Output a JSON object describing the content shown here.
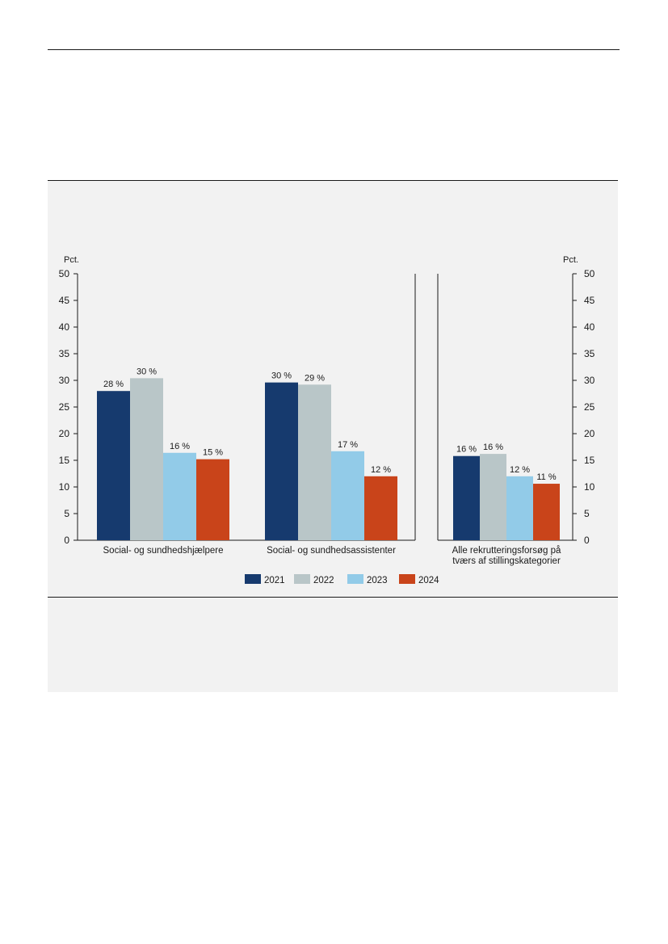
{
  "chart_data": {
    "type": "bar",
    "left_unit_label": "Pct.",
    "right_unit_label": "Pct.",
    "ylim": [
      0,
      50
    ],
    "yticks": [
      0,
      5,
      10,
      15,
      20,
      25,
      30,
      35,
      40,
      45,
      50
    ],
    "grid": false,
    "legend_position": "bottom",
    "series": [
      {
        "name": "2021",
        "color": "#163a6e"
      },
      {
        "name": "2022",
        "color": "#b9c6c8"
      },
      {
        "name": "2023",
        "color": "#92cbe8"
      },
      {
        "name": "2024",
        "color": "#c9441a"
      }
    ],
    "groups": [
      {
        "category": "Social- og sundhedshjælpere",
        "category_lines": [
          "Social- og sundhedshjælpere"
        ],
        "values": [
          28,
          30.4,
          16.4,
          15.2
        ],
        "labels": [
          "28 %",
          "30 %",
          "16 %",
          "15 %"
        ]
      },
      {
        "category": "Social- og sundhedsassistenter",
        "category_lines": [
          "Social- og sundhedsassistenter"
        ],
        "values": [
          29.6,
          29.2,
          16.7,
          12
        ],
        "labels": [
          "30 %",
          "29 %",
          "17 %",
          "12 %"
        ]
      },
      {
        "category": "Alle rekrutteringsforsøg på tværs af stillingskategorier",
        "category_lines": [
          "Alle rekrutteringsforsøg på",
          "tværs af stillingskategorier"
        ],
        "values": [
          15.8,
          16.2,
          12,
          10.6
        ],
        "labels": [
          "16 %",
          "16 %",
          "12 %",
          "11 %"
        ]
      }
    ]
  }
}
